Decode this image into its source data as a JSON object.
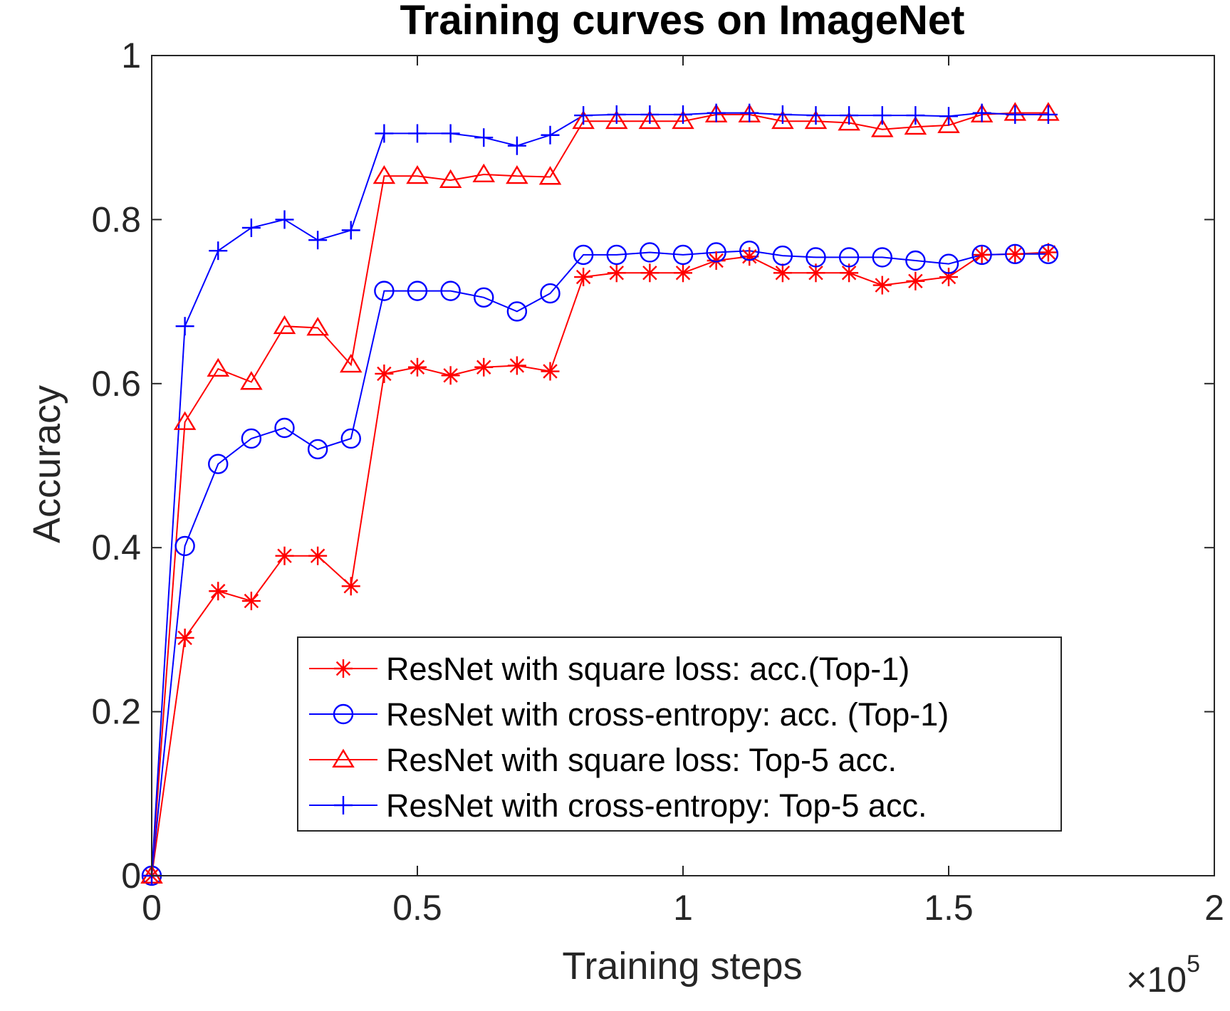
{
  "chart_data": {
    "type": "line",
    "title": "Training curves on ImageNet",
    "xlabel": "Training steps",
    "ylabel": "Accuracy",
    "x_multiplier": {
      "base": "×10",
      "exp": "5"
    },
    "xlim": [
      0,
      2
    ],
    "ylim": [
      0,
      1
    ],
    "xticks": [
      0,
      0.5,
      1,
      1.5,
      2
    ],
    "xtick_labels": [
      "0",
      "0.5",
      "1",
      "1.5",
      "2"
    ],
    "yticks": [
      0,
      0.2,
      0.4,
      0.6,
      0.8,
      1
    ],
    "ytick_labels": [
      "0",
      "0.2",
      "0.4",
      "0.6",
      "0.8",
      "1"
    ],
    "grid": false,
    "legend_position": "bottom-center",
    "x": [
      0,
      0.0625,
      0.125,
      0.1875,
      0.25,
      0.3125,
      0.375,
      0.4375,
      0.5,
      0.5625,
      0.625,
      0.6875,
      0.75,
      0.8125,
      0.875,
      0.9375,
      1.0,
      1.0625,
      1.125,
      1.1875,
      1.25,
      1.3125,
      1.375,
      1.4375,
      1.5,
      1.5625,
      1.625,
      1.6875
    ],
    "series": [
      {
        "name": "ResNet with square loss: acc.(Top-1)",
        "color": "#ff0000",
        "marker": "asterisk",
        "values": [
          0,
          0.29,
          0.347,
          0.335,
          0.39,
          0.39,
          0.353,
          0.612,
          0.62,
          0.61,
          0.62,
          0.622,
          0.615,
          0.73,
          0.735,
          0.735,
          0.735,
          0.75,
          0.755,
          0.735,
          0.735,
          0.735,
          0.72,
          0.725,
          0.73,
          0.757,
          0.758,
          0.76
        ]
      },
      {
        "name": "ResNet with cross-entropy: acc. (Top-1)",
        "color": "#0000ff",
        "marker": "circle",
        "values": [
          0,
          0.402,
          0.502,
          0.533,
          0.546,
          0.52,
          0.533,
          0.713,
          0.713,
          0.713,
          0.705,
          0.688,
          0.71,
          0.757,
          0.757,
          0.76,
          0.757,
          0.76,
          0.762,
          0.756,
          0.754,
          0.754,
          0.754,
          0.75,
          0.746,
          0.757,
          0.758,
          0.758
        ]
      },
      {
        "name": "ResNet with square loss: Top-5 acc.",
        "color": "#ff0000",
        "marker": "triangle",
        "values": [
          0,
          0.553,
          0.618,
          0.602,
          0.67,
          0.668,
          0.623,
          0.853,
          0.853,
          0.848,
          0.855,
          0.853,
          0.852,
          0.92,
          0.92,
          0.92,
          0.92,
          0.928,
          0.928,
          0.92,
          0.92,
          0.918,
          0.91,
          0.913,
          0.915,
          0.928,
          0.93,
          0.93
        ]
      },
      {
        "name": "ResNet with cross-entropy: Top-5 acc.",
        "color": "#0000ff",
        "marker": "plus",
        "values": [
          0,
          0.67,
          0.762,
          0.79,
          0.8,
          0.775,
          0.787,
          0.905,
          0.905,
          0.905,
          0.9,
          0.89,
          0.903,
          0.927,
          0.928,
          0.928,
          0.928,
          0.93,
          0.93,
          0.928,
          0.927,
          0.927,
          0.927,
          0.927,
          0.926,
          0.93,
          0.928,
          0.928
        ]
      }
    ]
  }
}
